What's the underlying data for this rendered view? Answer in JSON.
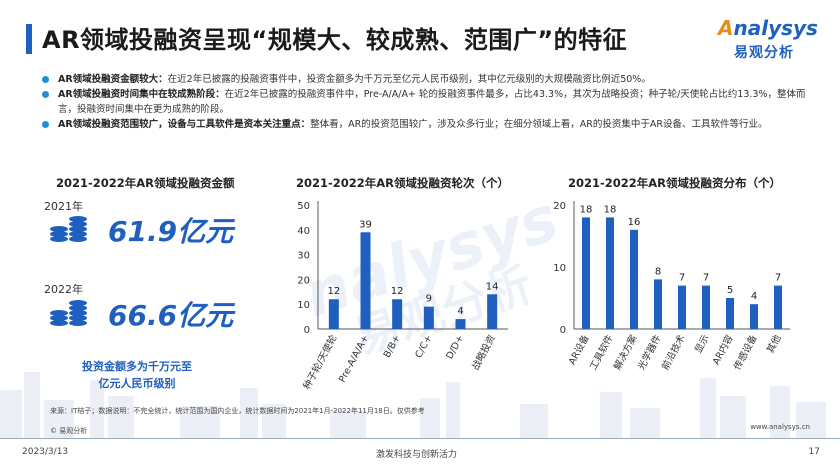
{
  "header": {
    "title": "AR领域投融资呈现“规模大、较成熟、范围广”的特征",
    "logo_word_first": "A",
    "logo_word_rest": "nalysys",
    "logo_cn": "易观分析"
  },
  "bullets": [
    {
      "bold": "AR领域投融资金额较大：",
      "text": "在近2年已披露的投融资事件中，投资金额多为千万元至亿元人民币级别，其中亿元级别的大规模融资比例近50%。"
    },
    {
      "bold": "AR领域投融资时间集中在较成熟阶段：",
      "text": "在近2年已披露的投融资事件中，Pre-A/A/A+ 轮的投融资事件最多，占比43.3%，其次为战略投资；种子轮/天使轮占比约13.3%，整体而言，投融资时间集中在更为成熟的阶段。"
    },
    {
      "bold": "AR领域投融资范围较广，设备与工具软件是资本关注重点：",
      "text": "整体看，AR的投资范围较广，涉及众多行业；在细分领域上看，AR的投资集中于AR设备、工具软件等行业。"
    }
  ],
  "amount_section": {
    "title": "2021-2022年AR领域投融资金额",
    "entries": [
      {
        "year": "2021年",
        "amount": "61.9亿元"
      },
      {
        "year": "2022年",
        "amount": "66.6亿元"
      }
    ],
    "note_line1": "投资金额多为千万元至",
    "note_line2": "亿元人民币级别"
  },
  "chart_data": [
    {
      "type": "bar",
      "title": "2021-2022年AR领域投融资轮次（个）",
      "categories": [
        "种子轮/天使轮",
        "Pre-A/A/A+",
        "B/B+",
        "C/C+",
        "D/D+",
        "战略投资"
      ],
      "values": [
        12,
        39,
        12,
        9,
        4,
        14
      ],
      "ylim": [
        0,
        50
      ],
      "yticks": [
        "0",
        "10",
        "20",
        "30",
        "40",
        "50"
      ],
      "grid": false,
      "color": "#1f5fbf"
    },
    {
      "type": "bar",
      "title": "2021-2022年AR领域投融资分布（个）",
      "categories": [
        "AR设备",
        "工具软件",
        "解决方案",
        "光学器件",
        "前沿技术",
        "显示",
        "AR内容",
        "传感设备",
        "其他"
      ],
      "values": [
        18,
        18,
        16,
        8,
        7,
        7,
        5,
        4,
        7
      ],
      "ylim": [
        0,
        20
      ],
      "yticks": [
        "0",
        "10",
        "20"
      ],
      "grid": false,
      "color": "#1f5fbf"
    }
  ],
  "footer": {
    "source": "来源：IT桔子；数据说明：不完全统计，统计范围为国内企业，统计数据时间为2021年1月-2022年11月18日。仅供参考",
    "copyright": "© 易观分析",
    "website": "www.analysys.cn",
    "date": "2023/3/13",
    "slogan": "激发科技与创新活力",
    "page": "17"
  },
  "colors": {
    "accent": "#1f5fbf",
    "bullet": "#1e8fd8",
    "logo_orange": "#e98a1c"
  }
}
